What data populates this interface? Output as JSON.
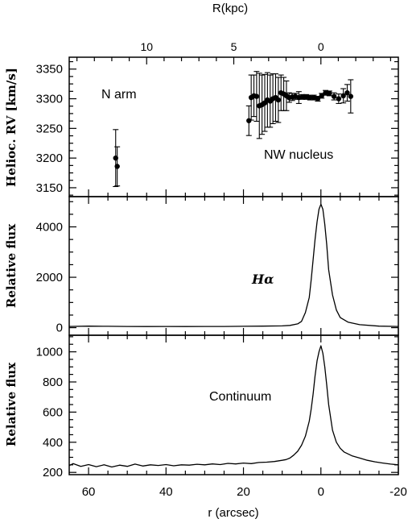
{
  "chart_data": [
    {
      "type": "scatter",
      "panel": "rv",
      "ylabel": "Helioc. RV [km/s]",
      "ylim": [
        3135,
        3370
      ],
      "yticks": [
        3150,
        3200,
        3250,
        3300,
        3350
      ],
      "xlim": [
        65,
        -20
      ],
      "top_axis": {
        "label": "R(kpc)",
        "ticks": [
          "10",
          "5",
          "0"
        ]
      },
      "annotations": [
        "N arm",
        "NW nucleus"
      ],
      "points": [
        {
          "x": 53.0,
          "y": 3200,
          "err": 48
        },
        {
          "x": 52.6,
          "y": 3186,
          "err": 33
        },
        {
          "x": 18.6,
          "y": 3263,
          "err": 25
        },
        {
          "x": 18.0,
          "y": 3302,
          "err": 38
        },
        {
          "x": 17.3,
          "y": 3305,
          "err": 35
        },
        {
          "x": 16.6,
          "y": 3304,
          "err": 42
        },
        {
          "x": 15.9,
          "y": 3288,
          "err": 55
        },
        {
          "x": 15.2,
          "y": 3290,
          "err": 50
        },
        {
          "x": 14.5,
          "y": 3293,
          "err": 48
        },
        {
          "x": 13.8,
          "y": 3298,
          "err": 46
        },
        {
          "x": 13.1,
          "y": 3296,
          "err": 44
        },
        {
          "x": 12.4,
          "y": 3300,
          "err": 42
        },
        {
          "x": 11.7,
          "y": 3302,
          "err": 40
        },
        {
          "x": 11.0,
          "y": 3298,
          "err": 38
        },
        {
          "x": 10.3,
          "y": 3310,
          "err": 30
        },
        {
          "x": 9.6,
          "y": 3308,
          "err": 28
        },
        {
          "x": 8.9,
          "y": 3305,
          "err": 25
        },
        {
          "x": 8.2,
          "y": 3302,
          "err": 8
        },
        {
          "x": 7.4,
          "y": 3303,
          "err": 6
        },
        {
          "x": 6.6,
          "y": 3304,
          "err": 5
        },
        {
          "x": 5.7,
          "y": 3302,
          "err": 10
        },
        {
          "x": 4.8,
          "y": 3303,
          "err": 4
        },
        {
          "x": 3.8,
          "y": 3303,
          "err": 4
        },
        {
          "x": 2.8,
          "y": 3302,
          "err": 4
        },
        {
          "x": 1.8,
          "y": 3302,
          "err": 4
        },
        {
          "x": 0.8,
          "y": 3300,
          "err": 4
        },
        {
          "x": -0.2,
          "y": 3305,
          "err": 4
        },
        {
          "x": -1.2,
          "y": 3310,
          "err": 4
        },
        {
          "x": -2.2,
          "y": 3309,
          "err": 4
        },
        {
          "x": -3.4,
          "y": 3304,
          "err": 6
        },
        {
          "x": -4.6,
          "y": 3300,
          "err": 8
        },
        {
          "x": -5.8,
          "y": 3305,
          "err": 12
        },
        {
          "x": -6.8,
          "y": 3310,
          "err": 14
        },
        {
          "x": -7.7,
          "y": 3304,
          "err": 28
        }
      ]
    },
    {
      "type": "line",
      "panel": "halpha",
      "ylabel": "Relative flux",
      "ylim": [
        -300,
        5200
      ],
      "yticks": [
        0,
        2000,
        4000
      ],
      "xlim": [
        65,
        -20
      ],
      "annotation": "Hα",
      "x": [
        65,
        60,
        55,
        50,
        45,
        40,
        35,
        30,
        25,
        20,
        15,
        10,
        8,
        6,
        5,
        4,
        3,
        2.5,
        2,
        1.5,
        1,
        0.5,
        0,
        -0.5,
        -1,
        -1.5,
        -2,
        -3,
        -4,
        -5,
        -7,
        -10,
        -15,
        -20
      ],
      "y": [
        50,
        60,
        55,
        50,
        45,
        50,
        45,
        50,
        50,
        55,
        60,
        70,
        90,
        150,
        250,
        600,
        1200,
        1900,
        2700,
        3500,
        4200,
        4700,
        4900,
        4700,
        4100,
        3300,
        2300,
        1300,
        700,
        400,
        220,
        120,
        60,
        50
      ]
    },
    {
      "type": "line",
      "panel": "continuum",
      "ylabel": "Relative flux",
      "ylim": [
        185,
        1110
      ],
      "yticks": [
        200,
        400,
        600,
        800,
        1000
      ],
      "xlim": [
        65,
        -20
      ],
      "xlabel": "r (arcsec)",
      "xticks": [
        60,
        40,
        20,
        0,
        -20
      ],
      "annotation": "Continuum",
      "x": [
        65,
        64,
        62,
        60,
        58,
        56,
        54,
        52,
        50,
        48,
        46,
        44,
        42,
        40,
        38,
        36,
        34,
        32,
        30,
        28,
        26,
        24,
        22,
        20,
        18,
        16,
        14,
        12,
        10,
        9,
        8,
        7,
        6,
        5,
        4,
        3,
        2.5,
        2,
        1.5,
        1,
        0.5,
        0,
        -0.5,
        -1,
        -1.5,
        -2,
        -3,
        -4,
        -5,
        -6,
        -8,
        -10,
        -12,
        -14,
        -16,
        -18,
        -20
      ],
      "y": [
        245,
        258,
        240,
        252,
        238,
        250,
        236,
        248,
        240,
        255,
        242,
        250,
        246,
        252,
        244,
        250,
        248,
        254,
        250,
        256,
        252,
        260,
        256,
        262,
        258,
        266,
        268,
        272,
        280,
        285,
        295,
        315,
        340,
        380,
        440,
        540,
        620,
        720,
        840,
        940,
        1000,
        1040,
        990,
        900,
        780,
        650,
        480,
        400,
        360,
        335,
        310,
        295,
        280,
        270,
        262,
        255,
        250
      ]
    }
  ]
}
